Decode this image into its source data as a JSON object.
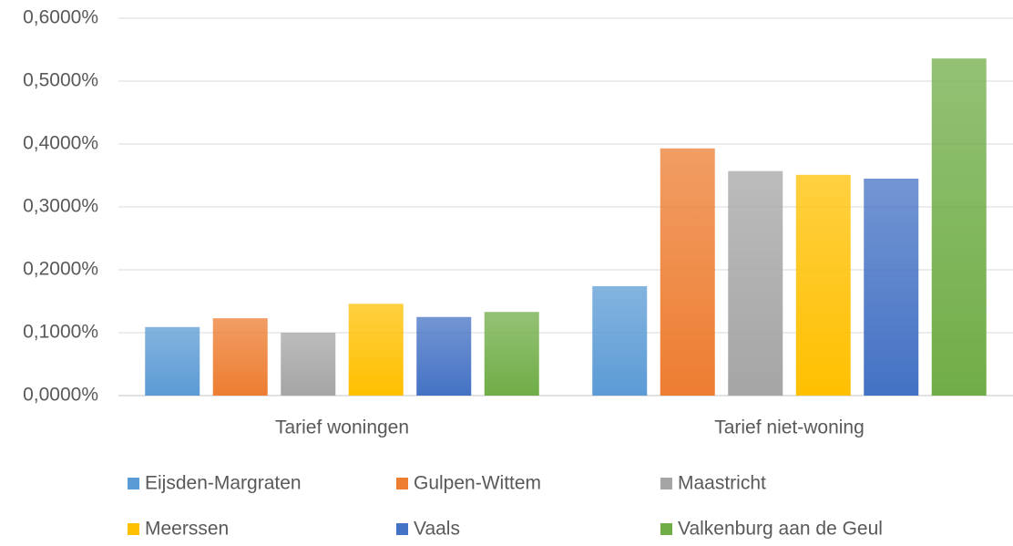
{
  "chart_data": {
    "type": "bar",
    "categories": [
      "Tarief woningen",
      "Tarief niet-woning"
    ],
    "series": [
      {
        "name": "Eijsden-Margraten",
        "color": "#5b9bd5",
        "values": [
          0.109,
          0.174
        ]
      },
      {
        "name": "Gulpen-Wittem",
        "color": "#ed7d31",
        "values": [
          0.123,
          0.393
        ]
      },
      {
        "name": "Maastricht",
        "color": "#a5a5a5",
        "values": [
          0.1,
          0.357
        ]
      },
      {
        "name": "Meerssen",
        "color": "#ffc000",
        "values": [
          0.146,
          0.351
        ]
      },
      {
        "name": "Vaals",
        "color": "#4472c4",
        "values": [
          0.125,
          0.345
        ]
      },
      {
        "name": "Valkenburg aan de Geul",
        "color": "#70ad47",
        "values": [
          0.133,
          0.536
        ]
      }
    ],
    "ylim": [
      0,
      0.6
    ],
    "yticks": [
      {
        "value": 0,
        "label": "0,0000%"
      },
      {
        "value": 0.1,
        "label": "0,1000%"
      },
      {
        "value": 0.2,
        "label": "0,2000%"
      },
      {
        "value": 0.3,
        "label": "0,3000%"
      },
      {
        "value": 0.4,
        "label": "0,4000%"
      },
      {
        "value": 0.5,
        "label": "0,5000%"
      },
      {
        "value": 0.6,
        "label": "0,6000%"
      }
    ],
    "grid": true,
    "legend": "bottom"
  }
}
